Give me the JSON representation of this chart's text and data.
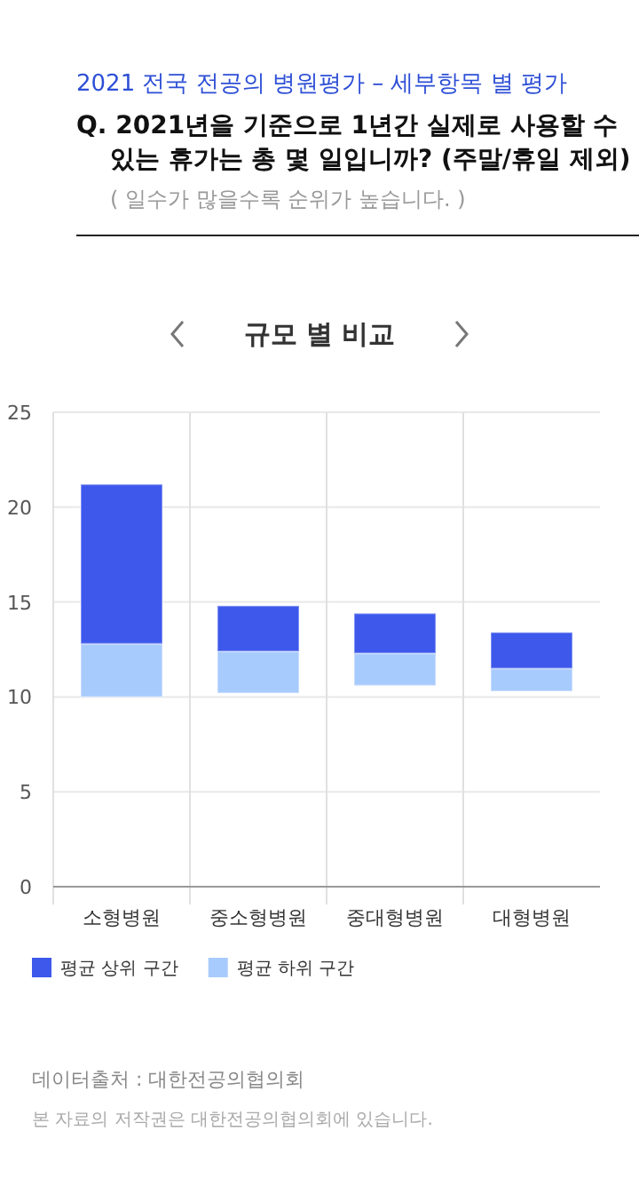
{
  "chart_data": {
    "type": "bar",
    "title": "2021 전국 전공의 병원평가 – 세부항목 별 평가",
    "subtitle": "Q. 2021년을 기준으로 1년간 실제로 사용할 수 있는 휴가는 총 몇 일입니까? (주말/휴일 제외)",
    "annotations": [
      "( 일수가 많을수록 순위가 높습니다. )",
      "규모 별 비교",
      "데이터출처 : 대한전공의협의회",
      "본 자료의 저작권은 대한전공의협의회에 있습니다."
    ],
    "categories": [
      "소형병원",
      "중소형병원",
      "중대형병원",
      "대형병원"
    ],
    "series": [
      {
        "name": "평균 하위 구간",
        "color": "#a8cbfd",
        "base": [
          10.0,
          10.2,
          10.6,
          10.3
        ],
        "values": [
          2.8,
          2.2,
          1.7,
          1.2
        ]
      },
      {
        "name": "평균 상위 구간",
        "color": "#3d58eb",
        "base": [
          12.8,
          12.4,
          12.3,
          11.5
        ],
        "values": [
          8.4,
          2.4,
          2.1,
          1.9
        ]
      }
    ],
    "ylim": [
      0,
      25
    ],
    "yticks": [
      0,
      5,
      10,
      15,
      20,
      25
    ],
    "grid": true,
    "legend": "bottom"
  }
}
